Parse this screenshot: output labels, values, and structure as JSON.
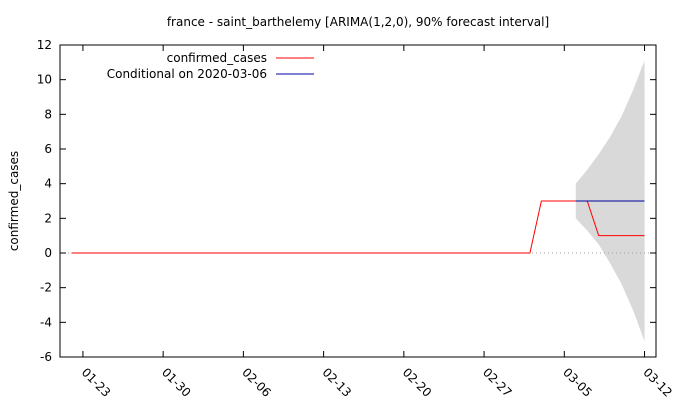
{
  "chart_data": {
    "type": "line",
    "title": "france - saint_barthelemy [ARIMA(1,2,0), 90% forecast interval]",
    "xlabel": "",
    "ylabel": "confirmed_cases",
    "ylim": [
      -6,
      12
    ],
    "yticks": [
      -6,
      -4,
      -2,
      0,
      2,
      4,
      6,
      8,
      10,
      12
    ],
    "xlim": [
      "2020-01-21",
      "2020-03-13"
    ],
    "xticks": [
      {
        "date": "2020-01-23",
        "label": "01-23"
      },
      {
        "date": "2020-01-30",
        "label": "01-30"
      },
      {
        "date": "2020-02-06",
        "label": "02-06"
      },
      {
        "date": "2020-02-13",
        "label": "02-13"
      },
      {
        "date": "2020-02-20",
        "label": "02-20"
      },
      {
        "date": "2020-02-27",
        "label": "02-27"
      },
      {
        "date": "2020-03-05",
        "label": "03-05"
      },
      {
        "date": "2020-03-12",
        "label": "03-12"
      }
    ],
    "legend": {
      "position": "top-left"
    },
    "series": [
      {
        "name": "confirmed_cases",
        "color": "#ff0000",
        "points": [
          [
            "2020-01-22",
            0
          ],
          [
            "2020-03-02",
            0
          ],
          [
            "2020-03-03",
            3
          ],
          [
            "2020-03-07",
            3
          ],
          [
            "2020-03-08",
            1
          ],
          [
            "2020-03-12",
            1
          ]
        ]
      },
      {
        "name": "Conditional on 2020-03-06",
        "color": "#0000a0",
        "points": [
          [
            "2020-03-06",
            3
          ],
          [
            "2020-03-12",
            3
          ]
        ]
      }
    ],
    "forecast_interval": {
      "level": "90%",
      "color": "#d9d9d9",
      "points": [
        {
          "date": "2020-03-06",
          "lower": 2.0,
          "upper": 4.0
        },
        {
          "date": "2020-03-07",
          "lower": 1.3,
          "upper": 4.8
        },
        {
          "date": "2020-03-08",
          "lower": 0.5,
          "upper": 5.7
        },
        {
          "date": "2020-03-09",
          "lower": -0.6,
          "upper": 6.7
        },
        {
          "date": "2020-03-10",
          "lower": -1.8,
          "upper": 7.9
        },
        {
          "date": "2020-03-11",
          "lower": -3.3,
          "upper": 9.4
        },
        {
          "date": "2020-03-12",
          "lower": -5.1,
          "upper": 11.1
        }
      ]
    },
    "reference_line": {
      "y": 0,
      "style": "dotted",
      "color": "#a0a0a0"
    }
  }
}
